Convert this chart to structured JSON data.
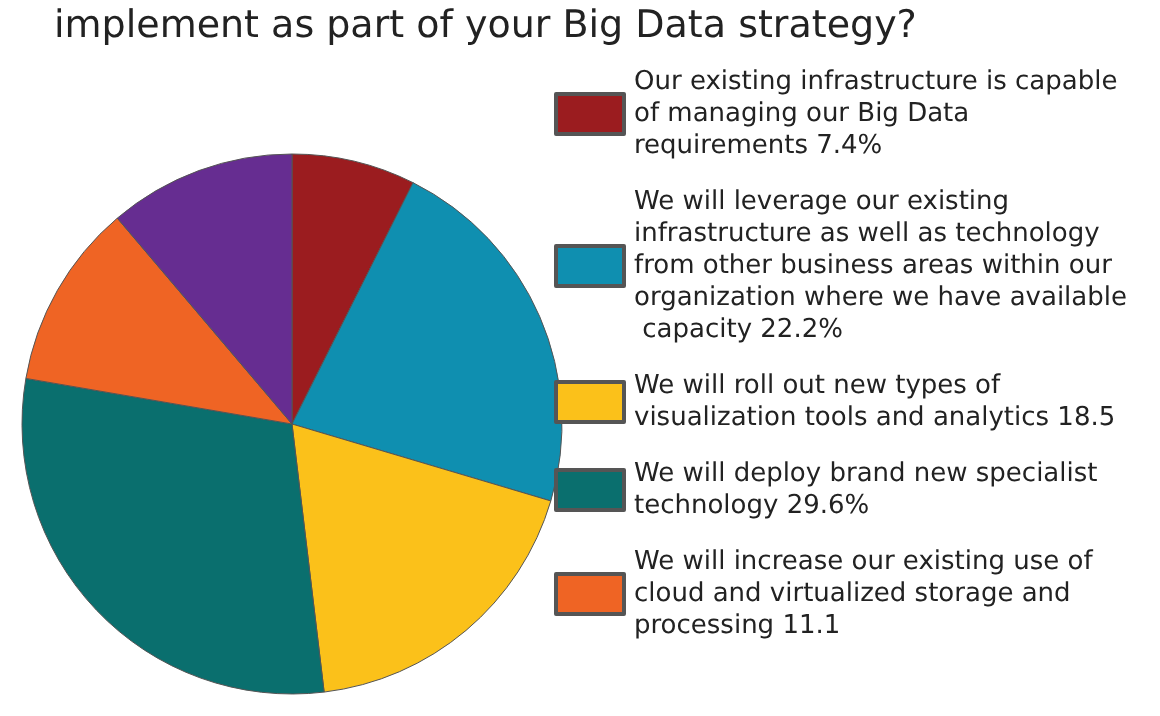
{
  "chart_data": {
    "type": "pie",
    "title": "implement as part of your Big Data strategy?",
    "categories": [
      "Our existing infrastructure is capable of managing our Big Data requirements",
      "We will leverage our existing infrastructure as well as technology from other business areas within our organization where we have available capacity",
      "We will roll out new types of visualization tools and analytics",
      "We will deploy brand new specialist technology",
      "We will increase our existing use of cloud and virtualized storage and processing",
      null
    ],
    "values": [
      7.4,
      22.2,
      18.5,
      29.6,
      11.1,
      11.2
    ],
    "value_labels": [
      "7.4%",
      "22.2%",
      "18.5",
      "29.6%",
      "11.1",
      null
    ],
    "colors": [
      "#9b1c1f",
      "#0f8fb0",
      "#fbc11a",
      "#0a6f6e",
      "#ef6424",
      "#662d91"
    ],
    "legend": "right"
  }
}
